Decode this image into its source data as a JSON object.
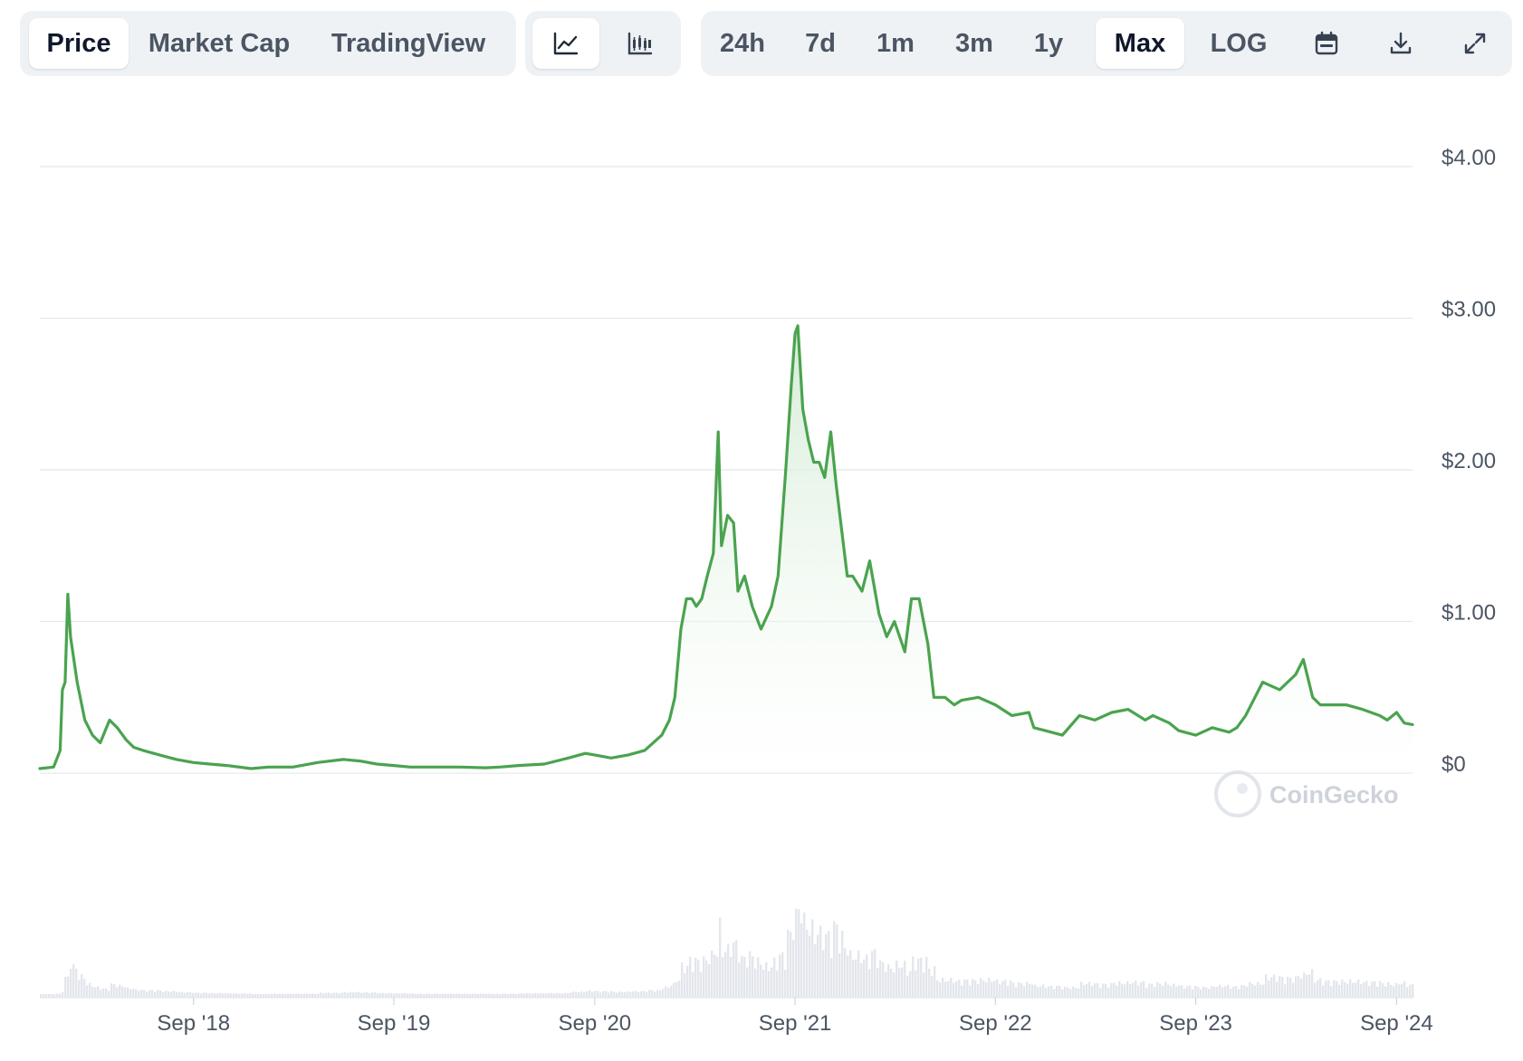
{
  "toolbar": {
    "view_tabs": [
      {
        "label": "Price",
        "active": true
      },
      {
        "label": "Market Cap",
        "active": false
      },
      {
        "label": "TradingView",
        "active": false
      }
    ],
    "chart_type_buttons": [
      {
        "icon": "line-chart-icon",
        "active": true
      },
      {
        "icon": "candlestick-chart-icon",
        "active": false
      }
    ],
    "range_buttons": [
      {
        "label": "24h",
        "active": false
      },
      {
        "label": "7d",
        "active": false
      },
      {
        "label": "1m",
        "active": false
      },
      {
        "label": "3m",
        "active": false
      },
      {
        "label": "1y",
        "active": false
      },
      {
        "label": "Max",
        "active": true
      },
      {
        "label": "LOG",
        "active": false
      }
    ],
    "tool_icons": [
      "calendar-icon",
      "download-icon",
      "fullscreen-icon"
    ]
  },
  "watermark": "CoinGecko",
  "colors": {
    "line": "#4aa34f",
    "area_top": "#cfe9d1",
    "grid": "#e5e7eb",
    "volume": "#e3e6ec",
    "axis_text": "#4b5563",
    "active_button": "#ffffff",
    "button_group_bg": "#eff2f5"
  },
  "chart_data": {
    "type": "area",
    "title": "",
    "xlabel": "",
    "ylabel": "",
    "xlim": [
      "2017-11-25",
      "2024-09-30"
    ],
    "ylim": [
      0,
      4
    ],
    "y_ticks": [
      {
        "value": 0,
        "label": "$0"
      },
      {
        "value": 1,
        "label": "$1.00"
      },
      {
        "value": 2,
        "label": "$2.00"
      },
      {
        "value": 3,
        "label": "$3.00"
      },
      {
        "value": 4,
        "label": "$4.00"
      }
    ],
    "x_ticks": [
      {
        "date": "2018-09-01",
        "label": "Sep '18"
      },
      {
        "date": "2019-09-01",
        "label": "Sep '19"
      },
      {
        "date": "2020-09-01",
        "label": "Sep '20"
      },
      {
        "date": "2021-09-01",
        "label": "Sep '21"
      },
      {
        "date": "2022-09-01",
        "label": "Sep '22"
      },
      {
        "date": "2023-09-01",
        "label": "Sep '23"
      },
      {
        "date": "2024-09-01",
        "label": "Sep '24"
      }
    ],
    "grid": true,
    "series": [
      {
        "x": [
          "2017-11-25",
          "2017-12-20",
          "2018-01-01",
          "2018-01-05",
          "2018-01-10",
          "2018-01-15",
          "2018-01-20",
          "2018-02-01",
          "2018-02-15",
          "2018-03-01",
          "2018-03-15",
          "2018-04-01",
          "2018-04-15",
          "2018-05-01",
          "2018-05-15",
          "2018-06-01",
          "2018-07-01",
          "2018-08-01",
          "2018-09-01",
          "2018-10-01",
          "2018-11-01",
          "2018-12-15",
          "2019-01-15",
          "2019-03-01",
          "2019-04-15",
          "2019-06-01",
          "2019-07-01",
          "2019-08-01",
          "2019-09-01",
          "2019-10-01",
          "2019-11-15",
          "2020-01-01",
          "2020-02-15",
          "2020-03-12",
          "2020-04-15",
          "2020-06-01",
          "2020-07-15",
          "2020-08-15",
          "2020-09-01",
          "2020-10-01",
          "2020-11-01",
          "2020-12-01",
          "2021-01-01",
          "2021-01-15",
          "2021-01-25",
          "2021-02-05",
          "2021-02-15",
          "2021-02-25",
          "2021-03-05",
          "2021-03-15",
          "2021-03-25",
          "2021-04-05",
          "2021-04-14",
          "2021-04-20",
          "2021-05-01",
          "2021-05-12",
          "2021-05-20",
          "2021-06-01",
          "2021-06-15",
          "2021-07-01",
          "2021-07-20",
          "2021-08-01",
          "2021-08-15",
          "2021-08-25",
          "2021-09-01",
          "2021-09-06",
          "2021-09-15",
          "2021-09-25",
          "2021-10-05",
          "2021-10-15",
          "2021-10-25",
          "2021-11-05",
          "2021-11-15",
          "2021-11-25",
          "2021-12-05",
          "2021-12-15",
          "2022-01-01",
          "2022-01-15",
          "2022-02-01",
          "2022-02-15",
          "2022-03-01",
          "2022-03-20",
          "2022-04-01",
          "2022-04-15",
          "2022-05-01",
          "2022-05-12",
          "2022-06-01",
          "2022-06-18",
          "2022-07-01",
          "2022-08-01",
          "2022-09-01",
          "2022-10-01",
          "2022-11-01",
          "2022-11-10",
          "2022-12-01",
          "2023-01-01",
          "2023-02-01",
          "2023-03-01",
          "2023-04-01",
          "2023-05-01",
          "2023-06-01",
          "2023-06-15",
          "2023-07-15",
          "2023-08-01",
          "2023-09-01",
          "2023-10-01",
          "2023-11-01",
          "2023-11-15",
          "2023-12-01",
          "2024-01-01",
          "2024-02-01",
          "2024-03-01",
          "2024-03-15",
          "2024-04-01",
          "2024-04-15",
          "2024-05-01",
          "2024-06-01",
          "2024-07-01",
          "2024-08-01",
          "2024-08-15",
          "2024-09-01",
          "2024-09-15",
          "2024-09-30"
        ],
        "values": [
          0.03,
          0.04,
          0.15,
          0.55,
          0.6,
          1.18,
          0.9,
          0.6,
          0.35,
          0.25,
          0.2,
          0.35,
          0.3,
          0.22,
          0.17,
          0.15,
          0.12,
          0.09,
          0.07,
          0.06,
          0.05,
          0.03,
          0.04,
          0.04,
          0.07,
          0.09,
          0.08,
          0.06,
          0.05,
          0.04,
          0.04,
          0.04,
          0.035,
          0.04,
          0.05,
          0.06,
          0.1,
          0.13,
          0.12,
          0.1,
          0.12,
          0.15,
          0.25,
          0.35,
          0.5,
          0.95,
          1.15,
          1.15,
          1.1,
          1.15,
          1.3,
          1.45,
          2.25,
          1.5,
          1.7,
          1.65,
          1.2,
          1.3,
          1.1,
          0.95,
          1.1,
          1.3,
          2.0,
          2.55,
          2.9,
          2.95,
          2.4,
          2.2,
          2.05,
          2.05,
          1.95,
          2.25,
          1.9,
          1.6,
          1.3,
          1.3,
          1.2,
          1.4,
          1.05,
          0.9,
          1.0,
          0.8,
          1.15,
          1.15,
          0.85,
          0.5,
          0.5,
          0.45,
          0.48,
          0.5,
          0.45,
          0.38,
          0.4,
          0.3,
          0.28,
          0.25,
          0.38,
          0.35,
          0.4,
          0.42,
          0.35,
          0.38,
          0.33,
          0.28,
          0.25,
          0.3,
          0.27,
          0.3,
          0.38,
          0.6,
          0.55,
          0.65,
          0.75,
          0.5,
          0.45,
          0.45,
          0.45,
          0.42,
          0.38,
          0.35,
          0.4,
          0.33,
          0.32
        ]
      }
    ]
  }
}
